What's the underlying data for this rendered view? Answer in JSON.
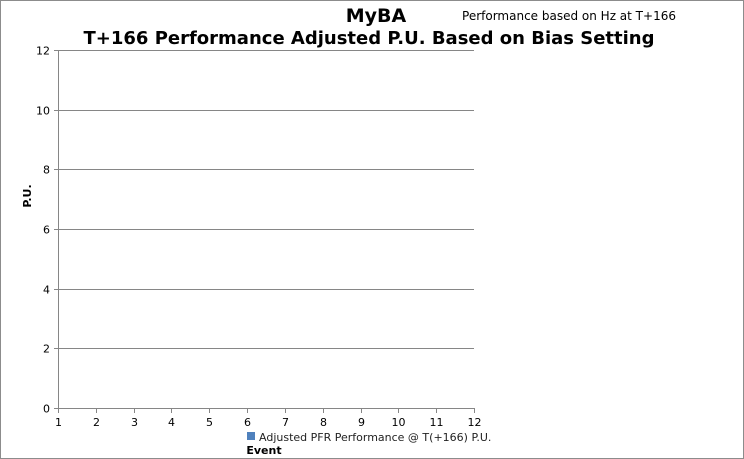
{
  "chart_data": {
    "type": "scatter",
    "title": "T+166 Performance Adjusted P.U. Based on Bias Setting",
    "overlay_title": "MyBA",
    "subtitle": "Performance based on Hz at T+166",
    "xlabel": "Event",
    "ylabel": "P.U.",
    "xlim": [
      1,
      12
    ],
    "ylim": [
      0,
      12
    ],
    "x_ticks": [
      1,
      2,
      3,
      4,
      5,
      6,
      7,
      8,
      9,
      10,
      11,
      12
    ],
    "y_ticks": [
      0,
      2,
      4,
      6,
      8,
      10,
      12
    ],
    "grid": true,
    "legend_position": "bottom",
    "series": [
      {
        "name": "Adjusted PFR Performance @ T(+166) P.U.",
        "color": "#4f81bd",
        "x": [],
        "y": []
      }
    ]
  }
}
